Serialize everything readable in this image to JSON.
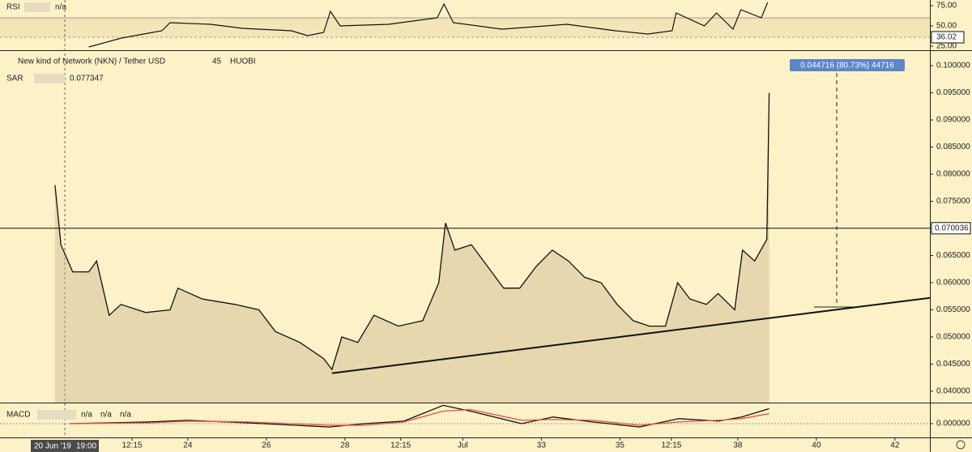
{
  "chart_data": [
    {
      "type": "line",
      "title": "RSI",
      "value_text": "n/a",
      "x": [
        21.48,
        22.31,
        23.34,
        23.55,
        24.58,
        25.4,
        26.64,
        27.05,
        27.46,
        27.63,
        27.88,
        29.11,
        30.35,
        30.52,
        30.76,
        32.0,
        33.65,
        34.89,
        35.71,
        36.33,
        36.43,
        37.15,
        37.46,
        37.88,
        38.08,
        38.6,
        38.76
      ],
      "values": [
        24,
        35,
        44,
        54,
        52,
        47,
        44,
        38,
        42,
        68,
        50,
        52,
        60,
        77,
        54,
        46,
        52,
        44,
        40,
        44,
        66,
        50,
        66,
        46,
        70,
        60,
        79
      ],
      "color": "#111111",
      "ylim": [
        20,
        82
      ],
      "yticks": [
        {
          "value": 75,
          "label": "75.00"
        },
        {
          "value": 50,
          "label": "50.00"
        },
        {
          "value": 25,
          "label": "25.00"
        }
      ],
      "last_value": 36.02
    },
    {
      "type": "line",
      "title": "New kind of Network (NKN) / Tether USD",
      "interval": "45",
      "exchange": "HUOBI",
      "indicator": "SAR",
      "indicator_value": "0.077347",
      "x": [
        20.62,
        20.77,
        21.07,
        21.48,
        21.68,
        22.0,
        22.3,
        22.93,
        23.55,
        23.75,
        24.37,
        25.2,
        25.81,
        26.23,
        26.85,
        27.46,
        27.67,
        27.92,
        28.33,
        28.74,
        29.36,
        29.98,
        30.39,
        30.56,
        30.8,
        31.22,
        31.63,
        32.04,
        32.45,
        32.87,
        33.28,
        33.69,
        34.1,
        34.52,
        34.93,
        35.34,
        35.75,
        36.16,
        36.47,
        36.78,
        37.2,
        37.5,
        37.92,
        38.12,
        38.43,
        38.74,
        38.8
      ],
      "values": [
        0.078,
        0.067,
        0.062,
        0.062,
        0.064,
        0.054,
        0.056,
        0.0545,
        0.055,
        0.059,
        0.057,
        0.056,
        0.055,
        0.051,
        0.049,
        0.046,
        0.044,
        0.05,
        0.049,
        0.054,
        0.052,
        0.053,
        0.06,
        0.071,
        0.066,
        0.067,
        0.063,
        0.059,
        0.059,
        0.063,
        0.066,
        0.064,
        0.061,
        0.06,
        0.056,
        0.053,
        0.052,
        0.052,
        0.06,
        0.057,
        0.056,
        0.058,
        0.055,
        0.066,
        0.064,
        0.068,
        0.095
      ],
      "color": "#111111",
      "xlim": [
        19.22,
        42.89
      ],
      "xticks": [
        {
          "value": 22.58,
          "label": "12:15"
        },
        24,
        26,
        28,
        {
          "value": 29.42,
          "label": "12:15"
        },
        {
          "value": 31,
          "label": "Jul"
        },
        33,
        35,
        {
          "value": 36.31,
          "label": "12:15"
        },
        38,
        40,
        42
      ],
      "ylim": [
        0.0379,
        0.1024
      ],
      "yticks": [
        {
          "value": 0.1,
          "label": "0.100000"
        },
        {
          "value": 0.095,
          "label": "0.095000"
        },
        {
          "value": 0.09,
          "label": "0.090000"
        },
        {
          "value": 0.085,
          "label": "0.085000"
        },
        {
          "value": 0.08,
          "label": "0.080000"
        },
        {
          "value": 0.075,
          "label": "0.075000"
        },
        {
          "value": 0.065,
          "label": "0.065000"
        },
        {
          "value": 0.06,
          "label": "0.060000"
        },
        {
          "value": 0.055,
          "label": "0.055000"
        },
        {
          "value": 0.05,
          "label": "0.050000"
        },
        {
          "value": 0.045,
          "label": "0.045000"
        },
        {
          "value": 0.04,
          "label": "0.040000"
        }
      ],
      "level": 0.070036,
      "trendline": {
        "x": [
          27.67,
          42.89
        ],
        "values": [
          0.0433,
          0.0572
        ]
      },
      "measure_label": "0.044716 (80.73%) 44716",
      "crosshair_date": "20 Jun '19",
      "crosshair_time": "19:00"
    },
    {
      "type": "line",
      "title": "MACD",
      "value_texts": [
        "n/a",
        "n/a",
        "n/a"
      ],
      "x": [
        21.0,
        23.0,
        24.0,
        25.5,
        27.6,
        28.5,
        29.5,
        30.5,
        31.2,
        32.5,
        33.3,
        34.3,
        35.5,
        36.5,
        37.5,
        38.1,
        38.8
      ],
      "series": [
        {
          "color": "#111111",
          "values": [
            0.0,
            0.0002,
            0.0004,
            0.0001,
            -0.0004,
            0.0,
            0.0003,
            0.0022,
            0.0015,
            0.0,
            0.0008,
            0.0002,
            -0.0004,
            0.0006,
            0.0003,
            0.0008,
            0.0018
          ]
        },
        {
          "color": "#e0533d",
          "values": [
            0.0,
            0.0001,
            0.0003,
            0.0002,
            -0.0002,
            -0.0002,
            0.0002,
            0.0015,
            0.0017,
            0.0004,
            0.0005,
            0.0004,
            -0.0002,
            0.0002,
            0.0004,
            0.0006,
            0.0012
          ]
        }
      ],
      "ylim": [
        -0.00166,
        0.00234
      ],
      "yticks": [
        {
          "value": 0,
          "label": "0.000000"
        }
      ]
    }
  ]
}
